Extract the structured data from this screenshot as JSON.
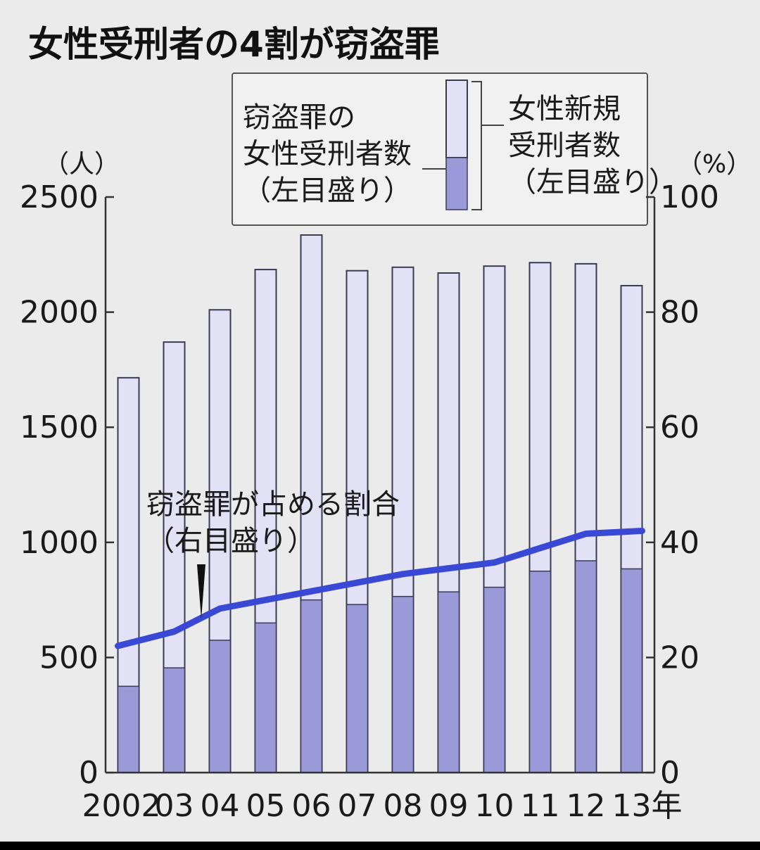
{
  "title": "女性受刑者の4割が窃盗罪",
  "chart_data": {
    "type": "bar",
    "title": "女性受刑者の4割が窃盗罪",
    "categories": [
      "2002",
      "03",
      "04",
      "05",
      "06",
      "07",
      "08",
      "09",
      "10",
      "11",
      "12",
      "13"
    ],
    "x_unit_label": "年",
    "left_axis": {
      "unit_label": "（人）",
      "range": [
        0,
        2500
      ],
      "ticks": [
        "0",
        "500",
        "1000",
        "1500",
        "2000",
        "2500"
      ]
    },
    "right_axis": {
      "unit_label": "（%）",
      "range": [
        0,
        100
      ],
      "ticks": [
        "0",
        "20",
        "40",
        "60",
        "80",
        "100"
      ]
    },
    "series": [
      {
        "name": "女性新規受刑者数（左目盛り）",
        "axis": "left",
        "kind": "bar",
        "values": [
          1715,
          1870,
          2010,
          2185,
          2335,
          2180,
          2195,
          2170,
          2200,
          2215,
          2210,
          2115
        ]
      },
      {
        "name": "窃盗罪の女性受刑者数（左目盛り）",
        "axis": "left",
        "kind": "bar-overlay",
        "values": [
          375,
          455,
          575,
          650,
          750,
          730,
          765,
          785,
          805,
          875,
          920,
          885
        ]
      },
      {
        "name": "窃盗罪が占める割合（右目盛り）",
        "axis": "right",
        "kind": "line",
        "values": [
          22,
          24.5,
          28.5,
          30,
          31.5,
          33,
          34.5,
          35.5,
          36.5,
          39,
          41.5,
          42
        ]
      }
    ],
    "legend": {
      "placement": "top",
      "theft_label_lines": [
        "窃盗罪の",
        "女性受刑者数",
        "（左目盛り）"
      ],
      "total_label_lines": [
        "女性新規",
        "受刑者数",
        "（左目盛り）"
      ]
    },
    "annotation": {
      "lines": [
        "窃盗罪が占める割合",
        "（右目盛り）"
      ]
    },
    "grid": false
  },
  "colors": {
    "bar_total": "#e3e1f5",
    "bar_theft": "#9a9ad8",
    "ratio_line": "#3a48d6",
    "background": "#ebebeb"
  }
}
